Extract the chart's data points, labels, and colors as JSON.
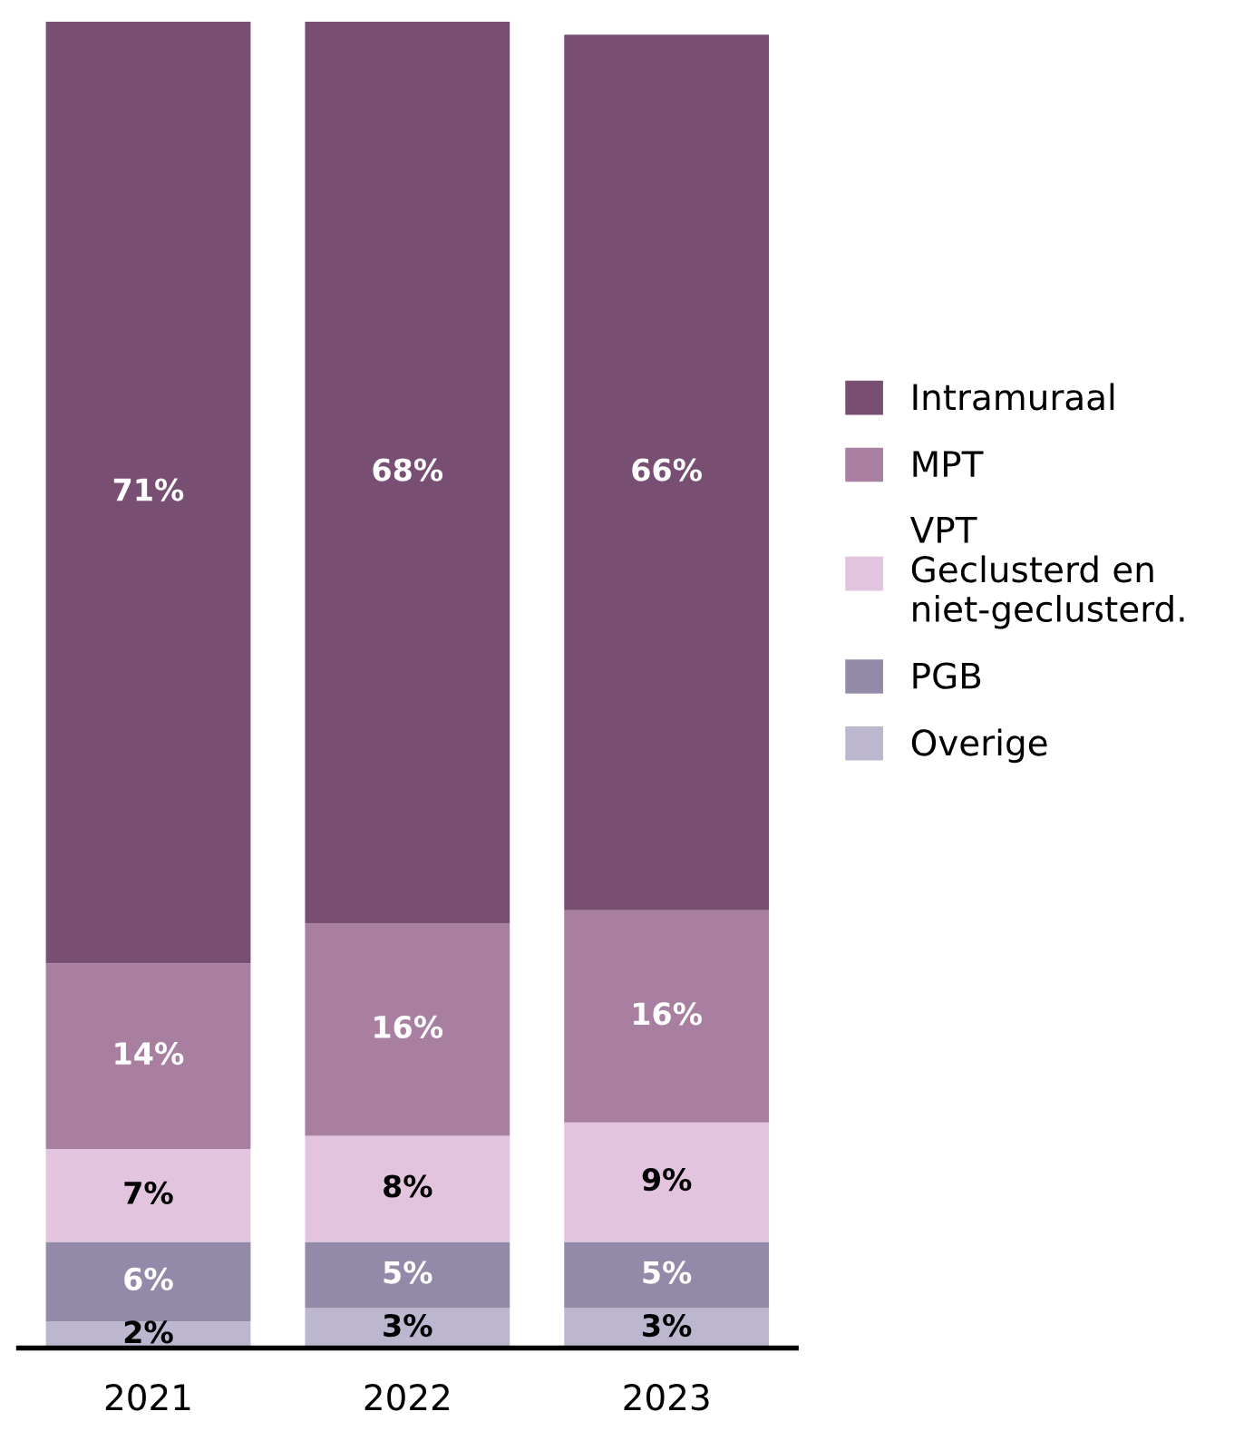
{
  "chart_data": {
    "type": "bar",
    "stacked": true,
    "categories": [
      "2021",
      "2022",
      "2023"
    ],
    "series": [
      {
        "name": "Overige",
        "color": "#bcb6cf",
        "values": [
          2,
          3,
          3
        ],
        "value_labels": [
          "2%",
          "3%",
          "3%"
        ]
      },
      {
        "name": "PGB",
        "color": "#928aa8",
        "values": [
          6,
          5,
          5
        ],
        "value_labels": [
          "6%",
          "5%",
          "5%"
        ]
      },
      {
        "name": "VPT\nGeclusterd en\nniet-geclusterd.",
        "color": "#e2c4df",
        "values": [
          7,
          8,
          9
        ],
        "value_labels": [
          "7%",
          "8%",
          "9%"
        ]
      },
      {
        "name": "MPT",
        "color": "#a87fa0",
        "values": [
          14,
          16,
          16
        ],
        "value_labels": [
          "14%",
          "16%",
          "16%"
        ]
      },
      {
        "name": "Intramuraal",
        "color": "#784e72",
        "values": [
          71,
          68,
          66
        ],
        "value_labels": [
          "71%",
          "68%",
          "66%"
        ]
      }
    ],
    "legend": "right"
  }
}
